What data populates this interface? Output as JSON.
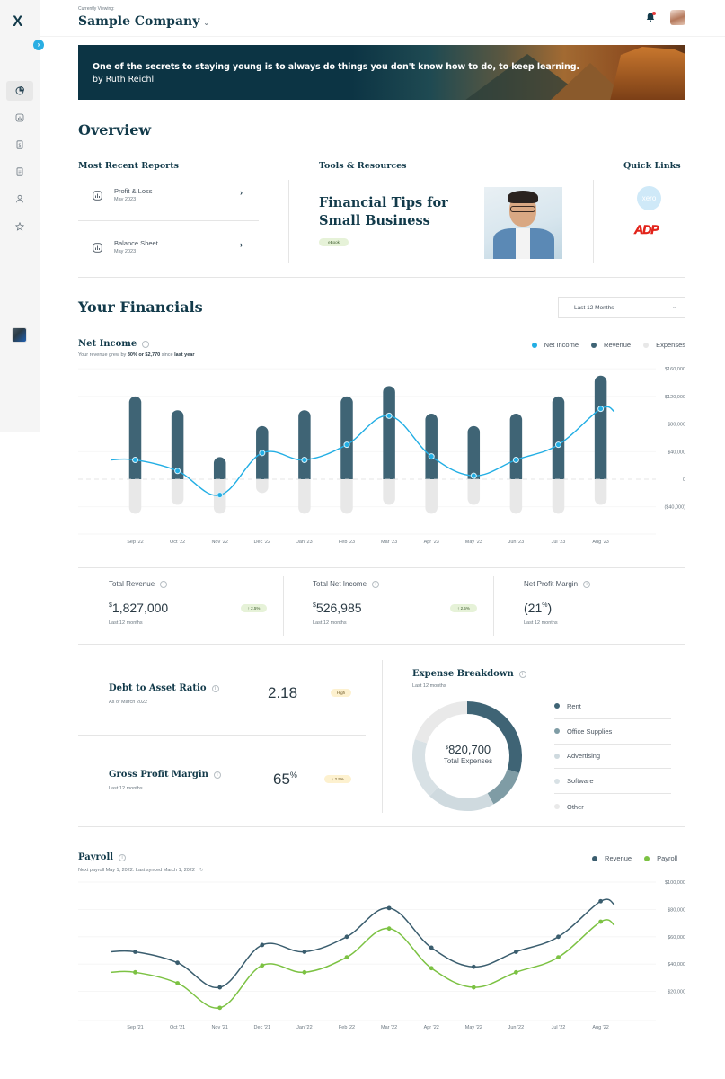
{
  "sidebar": {
    "logo": "X",
    "expand_icon": "›",
    "items": [
      {
        "name": "dashboard",
        "icon": "pie-chart-icon",
        "active": true
      },
      {
        "name": "reports",
        "icon": "bar-chart-icon",
        "active": false
      },
      {
        "name": "bills",
        "icon": "dollar-receipt-icon",
        "active": false
      },
      {
        "name": "documents",
        "icon": "document-icon",
        "active": false
      },
      {
        "name": "contacts",
        "icon": "user-icon",
        "active": false
      },
      {
        "name": "favorites",
        "icon": "star-icon",
        "active": false
      }
    ]
  },
  "header": {
    "currently_viewing_label": "Currently Viewing:",
    "company": "Sample Company",
    "company_chevron": "⌄"
  },
  "banner": {
    "quote": "One of the secrets to staying young is to always do things you don't know how to do, to keep learning.",
    "author": "by Ruth Reichl"
  },
  "overview": {
    "title": "Overview",
    "recent_reports": {
      "label": "Most Recent Reports",
      "items": [
        {
          "name": "Profit & Loss",
          "date": "May 2023"
        },
        {
          "name": "Balance Sheet",
          "date": "May 2023"
        }
      ],
      "chevron": "›"
    },
    "tools": {
      "label": "Tools & Resources",
      "title": "Financial Tips for Small Business",
      "tag": "eBook"
    },
    "quick_links": {
      "label": "Quick Links",
      "links": [
        {
          "name": "xero",
          "text": "xero",
          "color": "#cfe9f8"
        },
        {
          "name": "adp",
          "text": "ADP",
          "color": "#e2231a"
        }
      ]
    }
  },
  "financials": {
    "title": "Your Financials",
    "range": {
      "selected": "Last 12 Months",
      "chevron": "⌄"
    },
    "net_income": {
      "title": "Net Income",
      "subtitle_prefix": "Your revenue grew by ",
      "subtitle_bold1": "30% or $2,770",
      "subtitle_mid": " since ",
      "subtitle_bold2": "last year",
      "legend": [
        {
          "label": "Net Income",
          "color": "#22aee4"
        },
        {
          "label": "Revenue",
          "color": "#3f6475"
        },
        {
          "label": "Expenses",
          "color": "#e8e8e8"
        }
      ]
    },
    "kpis": [
      {
        "label": "Total Revenue",
        "currency": "$",
        "value": "1,827,000",
        "badge": "↑ 2.5%",
        "sub": "Last 12 months"
      },
      {
        "label": "Total Net Income",
        "currency": "$",
        "value": "526,985",
        "badge": "↑ 2.5%",
        "sub": "Last 12 months"
      },
      {
        "label": "Net Profit Margin",
        "value_prefix": "(21",
        "value_sup": "%",
        "value_suffix": ")",
        "sub": "Last 12 months"
      }
    ],
    "debt_ratio": {
      "title": "Debt to Asset Ratio",
      "sub": "As of March 2022",
      "value": "2.18",
      "badge": "High"
    },
    "gross_margin": {
      "title": "Gross Profit Margin",
      "sub": "Last 12 months",
      "value": "65",
      "unit": "%",
      "badge": "↓ 2.5%"
    },
    "expense_breakdown": {
      "title": "Expense Breakdown",
      "sub": "Last 12 months",
      "total_currency": "$",
      "total": "820,700",
      "total_label": "Total Expenses",
      "items": [
        {
          "label": "Rent",
          "color": "#3f6475"
        },
        {
          "label": "Office Supplies",
          "color": "#7f9ca5"
        },
        {
          "label": "Advertising",
          "color": "#cfdadf"
        },
        {
          "label": "Software",
          "color": "#d8e1e5"
        },
        {
          "label": "Other",
          "color": "#e9e9e9"
        }
      ]
    },
    "payroll": {
      "title": "Payroll",
      "sub": "Next payroll May 1, 2022. Last synced March 1, 2022",
      "sync_icon": "↻",
      "legend": [
        {
          "label": "Revenue",
          "color": "#3a5d6e"
        },
        {
          "label": "Payroll",
          "color": "#7cc243"
        }
      ]
    }
  },
  "chart_data": [
    {
      "type": "bar",
      "title": "Net Income",
      "categories": [
        "Sep '22",
        "Oct '22",
        "Nov '22",
        "Dec '22",
        "Jan '23",
        "Feb '23",
        "Mar '23",
        "Apr '23",
        "May '23",
        "Jun '23",
        "Jul '23",
        "Aug '23"
      ],
      "series": [
        {
          "name": "Revenue",
          "type": "bar",
          "color": "#3f6475",
          "values": [
            120000,
            100000,
            32000,
            77000,
            100000,
            120000,
            135000,
            95000,
            77000,
            95000,
            120000,
            150000
          ]
        },
        {
          "name": "Expenses",
          "type": "bar",
          "color": "#e8e8e8",
          "values": [
            -50000,
            -37000,
            -50000,
            -20000,
            -50000,
            -50000,
            -37000,
            -50000,
            -37000,
            -50000,
            -50000,
            -37000
          ]
        },
        {
          "name": "Net Income",
          "type": "line",
          "color": "#22aee4",
          "values": [
            28000,
            12000,
            -23000,
            38000,
            28000,
            50000,
            92000,
            33000,
            5000,
            28000,
            50000,
            102000
          ]
        }
      ],
      "yticks": [
        "$160,000",
        "$120,000",
        "$80,000",
        "$40,000",
        "0",
        "($40,000)"
      ],
      "ylim": [
        -60000,
        160000
      ],
      "grid": true,
      "legend_position": "top-right"
    },
    {
      "type": "donut",
      "title": "Expense Breakdown",
      "total": 820700,
      "categories": [
        "Rent",
        "Office Supplies",
        "Advertising",
        "Software",
        "Other"
      ],
      "values_pct": [
        30,
        12,
        20,
        18,
        20
      ]
    },
    {
      "type": "line",
      "title": "Payroll",
      "categories": [
        "Sep '21",
        "Oct '21",
        "Nov '21",
        "Dec '21",
        "Jan '22",
        "Feb '22",
        "Mar '22",
        "Apr '22",
        "May '22",
        "Jun '22",
        "Jul '22",
        "Aug '22"
      ],
      "series": [
        {
          "name": "Revenue",
          "color": "#3a5d6e",
          "values": [
            49000,
            41000,
            23000,
            54000,
            49000,
            60000,
            81000,
            52000,
            38000,
            49000,
            60000,
            86000
          ]
        },
        {
          "name": "Payroll",
          "color": "#7cc243",
          "values": [
            34000,
            26000,
            8000,
            39000,
            34000,
            45000,
            66000,
            37000,
            23000,
            34000,
            45000,
            71000
          ]
        }
      ],
      "yticks": [
        "$100,000",
        "$80,000",
        "$60,000",
        "$40,000",
        "$20,000"
      ],
      "ylim": [
        0,
        100000
      ],
      "grid": true,
      "legend_position": "top-right"
    }
  ]
}
